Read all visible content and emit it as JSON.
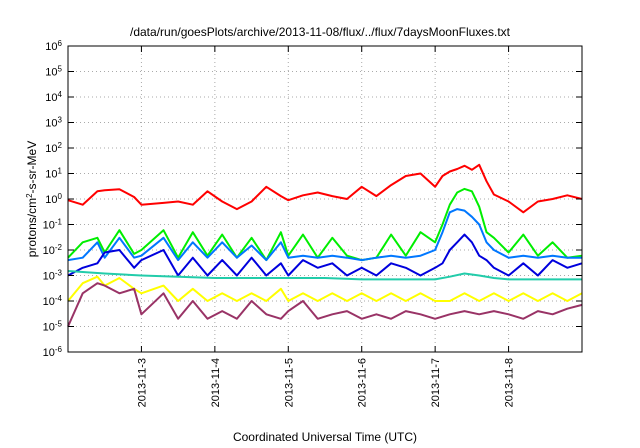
{
  "chart_data": {
    "type": "line",
    "title": "/data/run/goesPlots/archive/2013-11-08/flux/../flux/7daysMoonFluxes.txt",
    "xlabel": "Coordinated Universal Time (UTC)",
    "ylabel": {
      "prefix": "protons/cm",
      "sup": "2",
      "suffix": "-s-sr-MeV"
    },
    "yscale": "log",
    "ylim": [
      1e-06,
      1000000.0
    ],
    "xlim": [
      2.0,
      9.0
    ],
    "grid": true,
    "legend": "none",
    "y_ticks": [
      {
        "value": 1e-06,
        "base": "10",
        "exp": "-6"
      },
      {
        "value": 1e-05,
        "base": "10",
        "exp": "-5"
      },
      {
        "value": 0.0001,
        "base": "10",
        "exp": "-4"
      },
      {
        "value": 0.001,
        "base": "10",
        "exp": "-3"
      },
      {
        "value": 0.01,
        "base": "10",
        "exp": "-2"
      },
      {
        "value": 0.1,
        "base": "10",
        "exp": "-1"
      },
      {
        "value": 1,
        "base": "10",
        "exp": "0"
      },
      {
        "value": 10,
        "base": "10",
        "exp": "1"
      },
      {
        "value": 100,
        "base": "10",
        "exp": "2"
      },
      {
        "value": 1000,
        "base": "10",
        "exp": "3"
      },
      {
        "value": 10000,
        "base": "10",
        "exp": "4"
      },
      {
        "value": 100000,
        "base": "10",
        "exp": "5"
      },
      {
        "value": 1000000,
        "base": "10",
        "exp": "6"
      }
    ],
    "x_ticks": [
      {
        "value": 3,
        "label": "2013-11-3"
      },
      {
        "value": 4,
        "label": "2013-11-4"
      },
      {
        "value": 5,
        "label": "2013-11-5"
      },
      {
        "value": 6,
        "label": "2013-11-6"
      },
      {
        "value": 7,
        "label": "2013-11-7"
      },
      {
        "value": 8,
        "label": "2013-11-8"
      }
    ],
    "series": [
      {
        "color": "#ff0000",
        "x": [
          2.0,
          2.2,
          2.4,
          2.5,
          2.7,
          2.9,
          3.0,
          3.3,
          3.5,
          3.7,
          3.9,
          4.1,
          4.3,
          4.5,
          4.7,
          4.9,
          5.0,
          5.2,
          5.4,
          5.6,
          5.8,
          6.0,
          6.2,
          6.4,
          6.6,
          6.8,
          7.0,
          7.1,
          7.2,
          7.3,
          7.4,
          7.5,
          7.6,
          7.7,
          7.8,
          8.0,
          8.2,
          8.4,
          8.6,
          8.8,
          9.0
        ],
        "values": [
          0.9,
          0.6,
          2.0,
          2.2,
          2.4,
          1.2,
          0.6,
          0.7,
          0.8,
          0.6,
          2.0,
          0.8,
          0.4,
          0.8,
          3.0,
          1.3,
          0.9,
          1.4,
          1.8,
          1.3,
          1.0,
          3.0,
          1.3,
          3.5,
          8.0,
          10.0,
          3.0,
          8.0,
          12.0,
          15.0,
          20.0,
          14.0,
          22.0,
          5.0,
          1.5,
          0.8,
          0.3,
          0.8,
          1.0,
          1.4,
          1.0
        ]
      },
      {
        "color": "#00ee00",
        "x": [
          2.0,
          2.2,
          2.4,
          2.5,
          2.7,
          2.9,
          3.0,
          3.3,
          3.5,
          3.7,
          3.9,
          4.1,
          4.3,
          4.5,
          4.7,
          4.9,
          5.0,
          5.2,
          5.4,
          5.6,
          5.8,
          6.0,
          6.2,
          6.4,
          6.6,
          6.8,
          7.0,
          7.1,
          7.2,
          7.3,
          7.4,
          7.5,
          7.6,
          7.7,
          7.8,
          8.0,
          8.2,
          8.4,
          8.6,
          8.8,
          9.0
        ],
        "values": [
          0.005,
          0.02,
          0.03,
          0.008,
          0.06,
          0.007,
          0.01,
          0.06,
          0.005,
          0.05,
          0.006,
          0.04,
          0.005,
          0.03,
          0.004,
          0.05,
          0.006,
          0.04,
          0.005,
          0.03,
          0.006,
          0.004,
          0.005,
          0.04,
          0.006,
          0.05,
          0.02,
          0.1,
          0.6,
          1.8,
          2.5,
          2.0,
          0.5,
          0.05,
          0.03,
          0.008,
          0.04,
          0.006,
          0.02,
          0.005,
          0.006
        ]
      },
      {
        "color": "#0077ff",
        "x": [
          2.0,
          2.2,
          2.4,
          2.5,
          2.7,
          2.9,
          3.0,
          3.3,
          3.5,
          3.7,
          3.9,
          4.1,
          4.3,
          4.5,
          4.7,
          4.9,
          5.0,
          5.2,
          5.4,
          5.6,
          5.8,
          6.0,
          6.2,
          6.4,
          6.6,
          6.8,
          7.0,
          7.1,
          7.2,
          7.3,
          7.4,
          7.5,
          7.6,
          7.7,
          7.8,
          8.0,
          8.2,
          8.4,
          8.6,
          8.8,
          9.0
        ],
        "values": [
          0.004,
          0.005,
          0.02,
          0.005,
          0.03,
          0.005,
          0.006,
          0.03,
          0.004,
          0.02,
          0.005,
          0.02,
          0.005,
          0.015,
          0.004,
          0.02,
          0.005,
          0.006,
          0.005,
          0.006,
          0.005,
          0.004,
          0.005,
          0.006,
          0.005,
          0.006,
          0.01,
          0.05,
          0.3,
          0.4,
          0.35,
          0.2,
          0.1,
          0.02,
          0.01,
          0.005,
          0.006,
          0.005,
          0.006,
          0.005,
          0.005
        ]
      },
      {
        "color": "#0000dd",
        "x": [
          2.0,
          2.2,
          2.4,
          2.5,
          2.7,
          2.9,
          3.0,
          3.3,
          3.5,
          3.7,
          3.9,
          4.1,
          4.3,
          4.5,
          4.7,
          4.9,
          5.0,
          5.2,
          5.4,
          5.6,
          5.8,
          6.0,
          6.2,
          6.4,
          6.6,
          6.8,
          7.0,
          7.1,
          7.2,
          7.3,
          7.4,
          7.5,
          7.6,
          7.7,
          7.8,
          8.0,
          8.2,
          8.4,
          8.6,
          8.8,
          9.0
        ],
        "values": [
          0.001,
          0.002,
          0.003,
          0.008,
          0.01,
          0.002,
          0.004,
          0.01,
          0.001,
          0.005,
          0.001,
          0.004,
          0.001,
          0.005,
          0.001,
          0.003,
          0.001,
          0.004,
          0.002,
          0.003,
          0.001,
          0.002,
          0.001,
          0.003,
          0.002,
          0.001,
          0.002,
          0.003,
          0.01,
          0.02,
          0.04,
          0.02,
          0.006,
          0.004,
          0.002,
          0.001,
          0.003,
          0.001,
          0.004,
          0.002,
          0.003
        ]
      },
      {
        "color": "#22ccaa",
        "x": [
          2.0,
          2.5,
          3.0,
          3.5,
          4.0,
          4.5,
          5.0,
          5.5,
          6.0,
          6.5,
          7.0,
          7.2,
          7.4,
          7.6,
          7.8,
          8.0,
          8.5,
          9.0
        ],
        "values": [
          0.0015,
          0.0012,
          0.001,
          0.0009,
          0.0008,
          0.0008,
          0.0008,
          0.0008,
          0.0007,
          0.0007,
          0.0007,
          0.0009,
          0.0012,
          0.001,
          0.0008,
          0.0007,
          0.0007,
          0.0007
        ]
      },
      {
        "color": "#ffff00",
        "x": [
          2.0,
          2.2,
          2.4,
          2.5,
          2.7,
          2.9,
          3.0,
          3.3,
          3.5,
          3.7,
          3.9,
          4.1,
          4.3,
          4.5,
          4.7,
          4.9,
          5.0,
          5.2,
          5.4,
          5.6,
          5.8,
          6.0,
          6.2,
          6.4,
          6.6,
          6.8,
          7.0,
          7.2,
          7.4,
          7.6,
          7.8,
          8.0,
          8.2,
          8.4,
          8.6,
          8.8,
          9.0
        ],
        "values": [
          0.0001,
          0.0005,
          0.0009,
          0.0004,
          0.0008,
          0.0003,
          0.0002,
          0.0004,
          0.0001,
          0.0003,
          0.0001,
          0.0002,
          0.0001,
          0.0002,
          0.0001,
          0.0003,
          0.0001,
          0.0002,
          0.0001,
          0.0002,
          0.0001,
          0.0002,
          0.0001,
          0.0002,
          0.0001,
          0.0002,
          0.0001,
          0.0001,
          0.0002,
          0.0001,
          0.0002,
          0.0001,
          0.0002,
          0.0001,
          0.0002,
          0.0001,
          0.0002
        ]
      },
      {
        "color": "#993366",
        "x": [
          2.0,
          2.2,
          2.4,
          2.5,
          2.7,
          2.9,
          3.0,
          3.3,
          3.5,
          3.7,
          3.9,
          4.1,
          4.3,
          4.5,
          4.7,
          4.9,
          5.0,
          5.2,
          5.4,
          5.6,
          5.8,
          6.0,
          6.2,
          6.4,
          6.6,
          6.8,
          7.0,
          7.2,
          7.4,
          7.6,
          7.8,
          8.0,
          8.2,
          8.4,
          8.6,
          8.8,
          9.0
        ],
        "values": [
          1e-05,
          0.0002,
          0.0005,
          0.0004,
          0.0002,
          0.0003,
          3e-05,
          0.0002,
          2e-05,
          0.0001,
          2e-05,
          4e-05,
          2e-05,
          0.0001,
          3e-05,
          2e-05,
          4e-05,
          0.0001,
          2e-05,
          3e-05,
          4e-05,
          2e-05,
          3e-05,
          2e-05,
          4e-05,
          3e-05,
          2e-05,
          3e-05,
          4e-05,
          3e-05,
          4e-05,
          3e-05,
          2e-05,
          4e-05,
          3e-05,
          5e-05,
          7e-05
        ]
      }
    ]
  }
}
